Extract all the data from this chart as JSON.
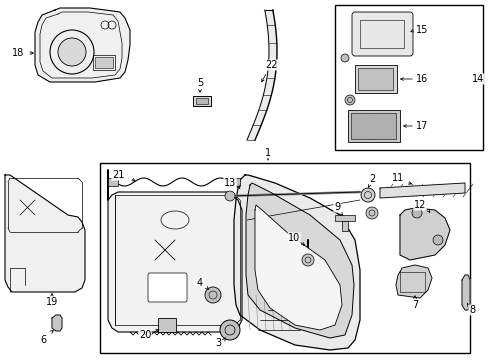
{
  "bg_color": "#ffffff",
  "fig_width": 4.89,
  "fig_height": 3.6,
  "dpi": 100,
  "font_size": 7.0
}
